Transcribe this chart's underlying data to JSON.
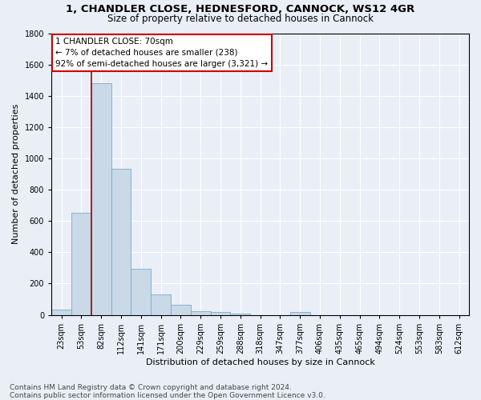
{
  "title1": "1, CHANDLER CLOSE, HEDNESFORD, CANNOCK, WS12 4GR",
  "title2": "Size of property relative to detached houses in Cannock",
  "xlabel": "Distribution of detached houses by size in Cannock",
  "ylabel": "Number of detached properties",
  "footnote1": "Contains HM Land Registry data © Crown copyright and database right 2024.",
  "footnote2": "Contains public sector information licensed under the Open Government Licence v3.0.",
  "bin_labels": [
    "23sqm",
    "53sqm",
    "82sqm",
    "112sqm",
    "141sqm",
    "171sqm",
    "200sqm",
    "229sqm",
    "259sqm",
    "288sqm",
    "318sqm",
    "347sqm",
    "377sqm",
    "406sqm",
    "435sqm",
    "465sqm",
    "494sqm",
    "524sqm",
    "553sqm",
    "583sqm",
    "612sqm"
  ],
  "bar_heights": [
    35,
    650,
    1480,
    935,
    295,
    130,
    65,
    22,
    18,
    8,
    0,
    0,
    20,
    0,
    0,
    0,
    0,
    0,
    0,
    0,
    0
  ],
  "bar_color": "#c9d9e8",
  "bar_edge_color": "#7aaac8",
  "vline_x_index": 1.5,
  "vline_color": "#aa0000",
  "annotation_line1": "1 CHANDLER CLOSE: 70sqm",
  "annotation_line2": "← 7% of detached houses are smaller (238)",
  "annotation_line3": "92% of semi-detached houses are larger (3,321) →",
  "annotation_box_color": "#ffffff",
  "annotation_box_edge_color": "#cc0000",
  "ylim": [
    0,
    1800
  ],
  "yticks": [
    0,
    200,
    400,
    600,
    800,
    1000,
    1200,
    1400,
    1600,
    1800
  ],
  "bg_color": "#eaeff7",
  "plot_bg_color": "#eaeff7",
  "grid_color": "#ffffff",
  "title1_fontsize": 9.5,
  "title2_fontsize": 8.5,
  "xlabel_fontsize": 8,
  "ylabel_fontsize": 8,
  "footnote_fontsize": 6.5,
  "tick_fontsize": 7,
  "annot_fontsize": 7.5
}
